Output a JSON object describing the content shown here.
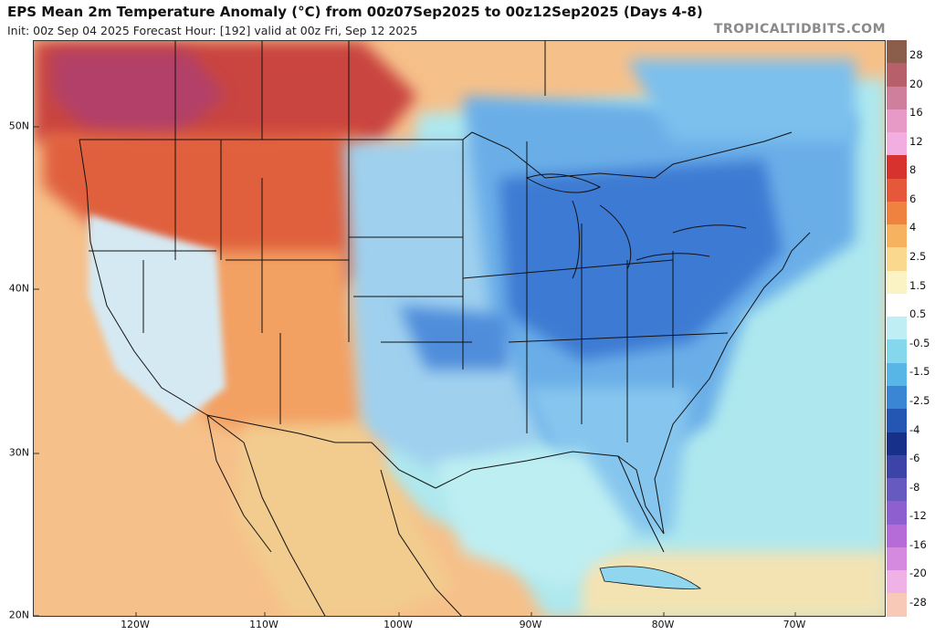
{
  "header": {
    "title": "EPS Mean 2m Temperature Anomaly (°C) from 00z07Sep2025 to 00z12Sep2025 (Days 4-8)",
    "subtitle": "Init: 00z Sep 04 2025   Forecast Hour: [192]   valid at 00z Fri, Sep 12 2025",
    "brand": "TROPICALTIDBITS.COM"
  },
  "map": {
    "lat_labels": [
      "50N",
      "40N",
      "30N",
      "20N"
    ],
    "lon_labels": [
      "120W",
      "110W",
      "100W",
      "90W",
      "80W",
      "70W"
    ],
    "region_colors": {
      "ocean_west": "#f4b27c",
      "ocean_gulf_atlantic": "#aee8ee",
      "northwest_warm": "#e0553a",
      "northwest_hot": "#c83a3a",
      "canada_hot": "#b04060",
      "great_basin": "#cfe6f2",
      "plains": "#9fd0ee",
      "midwest_cold": "#3f7fd6",
      "east_cool": "#5ea2e3",
      "southeast": "#86c6ee",
      "quebec": "#6fb6ec",
      "mexico_warm": "#f2cc8e",
      "caribbean": "#f6e6b0",
      "borders": "#111111"
    }
  },
  "colorbar": {
    "labels": [
      "28",
      "20",
      "16",
      "12",
      "8",
      "6",
      "4",
      "2.5",
      "1.5",
      "0.5",
      "-0.5",
      "-1.5",
      "-2.5",
      "-4",
      "-6",
      "-8",
      "-12",
      "-16",
      "-20",
      "-28"
    ],
    "colors": [
      "#8b5e4b",
      "#b7606b",
      "#cf7e9c",
      "#e79ac6",
      "#f2aee0",
      "#d7322d",
      "#e5583a",
      "#f0823f",
      "#f6b25f",
      "#fad98e",
      "#fbf3c4",
      "#ffffff",
      "#bfeef5",
      "#85d7ec",
      "#57b6e6",
      "#3a86d4",
      "#2457b3",
      "#17318a",
      "#3c44a8",
      "#6659c0",
      "#8e5fcf",
      "#b56cd8",
      "#d58ae0",
      "#efb1e6",
      "#f7c9b6"
    ]
  }
}
